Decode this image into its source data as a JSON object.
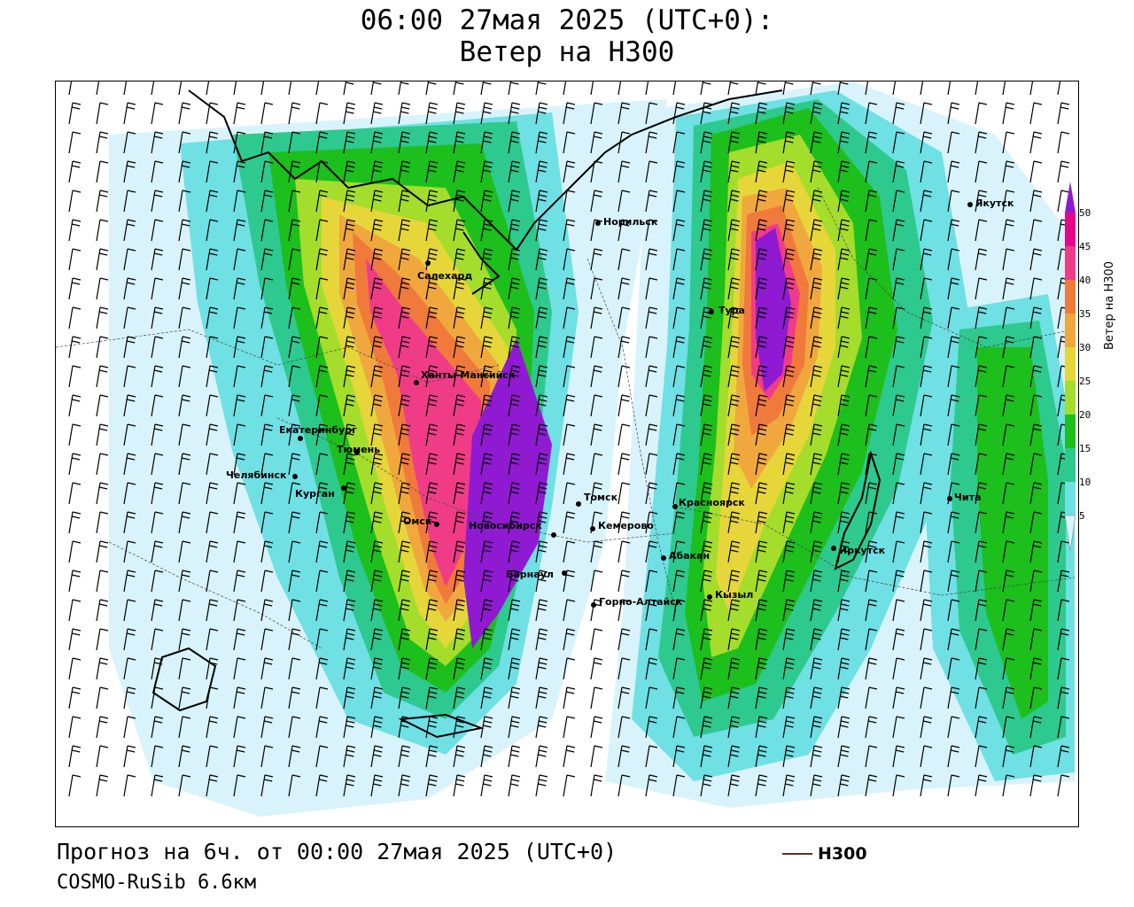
{
  "header": {
    "title_line1": "06:00 27мая 2025 (UTC+0):",
    "title_line2": "Ветер на H300"
  },
  "footer": {
    "forecast": "Прогноз на 6ч. от 00:00 27мая 2025 (UTC+0)",
    "model": "COSMO-RuSib 6.6км",
    "legend_label": "H300",
    "legend_color": "#6b2a1f"
  },
  "colorbar": {
    "title": "Ветер на H300",
    "ticks": [
      "5",
      "10",
      "15",
      "20",
      "25",
      "30",
      "35",
      "40",
      "45",
      "50"
    ],
    "colors": [
      "#d8f3fb",
      "#6fe0e4",
      "#2ec98e",
      "#1cbf1c",
      "#a4dd2b",
      "#e6d63a",
      "#f0a83e",
      "#f07a3b",
      "#f03c86",
      "#e4078a",
      "#8f1ad1"
    ]
  },
  "cities": [
    {
      "name": "Якутск"
    },
    {
      "name": "Норильск"
    },
    {
      "name": "Салехард"
    },
    {
      "name": "Тура"
    },
    {
      "name": "Ханты-Мансийск"
    },
    {
      "name": "Екатеринбург"
    },
    {
      "name": "Тюмень"
    },
    {
      "name": "Челябинск"
    },
    {
      "name": "Курган"
    },
    {
      "name": "Омск"
    },
    {
      "name": "Новосибирск"
    },
    {
      "name": "Томск"
    },
    {
      "name": "Кемерово"
    },
    {
      "name": "Красноярск"
    },
    {
      "name": "Чита"
    },
    {
      "name": "Иркутск"
    },
    {
      "name": "Абакан"
    },
    {
      "name": "Барнаул"
    },
    {
      "name": "Кызыл"
    },
    {
      "name": "Горно-Алтайск"
    }
  ]
}
